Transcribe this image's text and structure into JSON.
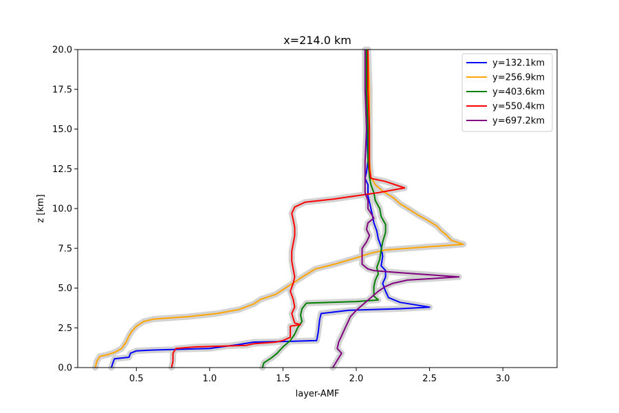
{
  "chart_data": {
    "type": "line",
    "title": "x=214.0 km",
    "xlabel": "layer-AMF",
    "ylabel": "z [km]",
    "xlim": [
      0.1,
      3.37
    ],
    "ylim": [
      0,
      20
    ],
    "xticks": [
      0.5,
      1.0,
      1.5,
      2.0,
      2.5,
      3.0
    ],
    "yticks": [
      0.0,
      2.5,
      5.0,
      7.5,
      10.0,
      12.5,
      15.0,
      17.5,
      20.0
    ],
    "legend_position": "top-right",
    "grid": false,
    "uncertainty_band_color": "#d3d3d3",
    "series": [
      {
        "name": "y=132.1km",
        "color": "#0000ff",
        "points": [
          [
            0.33,
            0
          ],
          [
            0.34,
            0.3
          ],
          [
            0.35,
            0.55
          ],
          [
            0.45,
            0.65
          ],
          [
            0.46,
            0.9
          ],
          [
            0.5,
            1.05
          ],
          [
            0.6,
            1.1
          ],
          [
            1.0,
            1.2
          ],
          [
            1.2,
            1.45
          ],
          [
            1.3,
            1.6
          ],
          [
            1.55,
            1.65
          ],
          [
            1.73,
            1.7
          ],
          [
            1.74,
            2.2
          ],
          [
            1.75,
            3.0
          ],
          [
            1.76,
            3.4
          ],
          [
            1.95,
            3.6
          ],
          [
            2.3,
            3.7
          ],
          [
            2.5,
            3.8
          ],
          [
            2.3,
            4.1
          ],
          [
            2.22,
            4.4
          ],
          [
            2.2,
            4.8
          ],
          [
            2.18,
            5.3
          ],
          [
            2.2,
            5.7
          ],
          [
            2.2,
            6.1
          ],
          [
            2.17,
            6.4
          ],
          [
            2.18,
            7.0
          ],
          [
            2.17,
            7.6
          ],
          [
            2.15,
            8.1
          ],
          [
            2.14,
            8.6
          ],
          [
            2.12,
            9.1
          ],
          [
            2.11,
            9.6
          ],
          [
            2.1,
            10.0
          ],
          [
            2.09,
            10.4
          ],
          [
            2.08,
            10.8
          ],
          [
            2.08,
            11.5
          ],
          [
            2.06,
            11.9
          ],
          [
            2.07,
            12.3
          ],
          [
            2.08,
            13.0
          ],
          [
            2.07,
            15.0
          ],
          [
            2.07,
            17.5
          ],
          [
            2.07,
            20.0
          ]
        ]
      },
      {
        "name": "y=256.9km",
        "color": "#ffa500",
        "points": [
          [
            0.22,
            0
          ],
          [
            0.23,
            0.4
          ],
          [
            0.25,
            0.7
          ],
          [
            0.3,
            0.8
          ],
          [
            0.35,
            0.95
          ],
          [
            0.4,
            1.2
          ],
          [
            0.43,
            1.6
          ],
          [
            0.45,
            2.0
          ],
          [
            0.47,
            2.3
          ],
          [
            0.5,
            2.6
          ],
          [
            0.55,
            2.9
          ],
          [
            0.62,
            3.05
          ],
          [
            0.85,
            3.2
          ],
          [
            1.05,
            3.4
          ],
          [
            1.2,
            3.65
          ],
          [
            1.3,
            4.0
          ],
          [
            1.35,
            4.3
          ],
          [
            1.45,
            4.6
          ],
          [
            1.5,
            4.9
          ],
          [
            1.55,
            5.2
          ],
          [
            1.6,
            5.5
          ],
          [
            1.65,
            5.8
          ],
          [
            1.72,
            6.2
          ],
          [
            1.85,
            6.5
          ],
          [
            2.0,
            6.9
          ],
          [
            2.1,
            7.2
          ],
          [
            2.2,
            7.4
          ],
          [
            2.5,
            7.6
          ],
          [
            2.73,
            7.75
          ],
          [
            2.65,
            8.0
          ],
          [
            2.62,
            8.3
          ],
          [
            2.58,
            8.6
          ],
          [
            2.55,
            8.9
          ],
          [
            2.48,
            9.3
          ],
          [
            2.42,
            9.6
          ],
          [
            2.37,
            9.9
          ],
          [
            2.3,
            10.3
          ],
          [
            2.25,
            10.7
          ],
          [
            2.18,
            11.1
          ],
          [
            2.13,
            11.5
          ],
          [
            2.1,
            12.0
          ],
          [
            2.09,
            13.0
          ],
          [
            2.09,
            15.0
          ],
          [
            2.09,
            17.5
          ],
          [
            2.08,
            20.0
          ]
        ]
      },
      {
        "name": "y=403.6km",
        "color": "#008000",
        "points": [
          [
            1.36,
            0
          ],
          [
            1.37,
            0.3
          ],
          [
            1.42,
            0.6
          ],
          [
            1.46,
            0.9
          ],
          [
            1.5,
            1.3
          ],
          [
            1.55,
            1.7
          ],
          [
            1.58,
            2.1
          ],
          [
            1.6,
            2.5
          ],
          [
            1.63,
            2.9
          ],
          [
            1.62,
            3.3
          ],
          [
            1.63,
            3.7
          ],
          [
            1.66,
            4.05
          ],
          [
            2.0,
            4.15
          ],
          [
            2.15,
            4.25
          ],
          [
            2.12,
            4.5
          ],
          [
            2.12,
            4.8
          ],
          [
            2.12,
            5.1
          ],
          [
            2.13,
            5.5
          ],
          [
            2.15,
            5.9
          ],
          [
            2.14,
            6.3
          ],
          [
            2.16,
            6.8
          ],
          [
            2.17,
            7.4
          ],
          [
            2.18,
            7.9
          ],
          [
            2.2,
            8.5
          ],
          [
            2.2,
            9.0
          ],
          [
            2.17,
            9.5
          ],
          [
            2.16,
            10.0
          ],
          [
            2.13,
            10.5
          ],
          [
            2.12,
            11.0
          ],
          [
            2.1,
            11.5
          ],
          [
            2.09,
            12.0
          ],
          [
            2.08,
            13.0
          ],
          [
            2.08,
            15.0
          ],
          [
            2.07,
            17.5
          ],
          [
            2.07,
            20.0
          ]
        ]
      },
      {
        "name": "y=550.4km",
        "color": "#ff0000",
        "points": [
          [
            0.74,
            0
          ],
          [
            0.75,
            0.4
          ],
          [
            0.75,
            0.9
          ],
          [
            0.77,
            1.2
          ],
          [
            0.9,
            1.3
          ],
          [
            1.1,
            1.35
          ],
          [
            1.25,
            1.4
          ],
          [
            1.3,
            1.5
          ],
          [
            1.45,
            1.6
          ],
          [
            1.5,
            1.7
          ],
          [
            1.55,
            1.9
          ],
          [
            1.55,
            2.2
          ],
          [
            1.55,
            2.6
          ],
          [
            1.62,
            2.7
          ],
          [
            1.58,
            2.8
          ],
          [
            1.57,
            3.1
          ],
          [
            1.56,
            3.4
          ],
          [
            1.58,
            3.8
          ],
          [
            1.57,
            4.3
          ],
          [
            1.55,
            4.8
          ],
          [
            1.57,
            5.3
          ],
          [
            1.58,
            5.7
          ],
          [
            1.57,
            6.2
          ],
          [
            1.56,
            6.7
          ],
          [
            1.56,
            7.3
          ],
          [
            1.57,
            7.8
          ],
          [
            1.58,
            8.3
          ],
          [
            1.58,
            8.8
          ],
          [
            1.57,
            9.3
          ],
          [
            1.56,
            9.7
          ],
          [
            1.58,
            10.1
          ],
          [
            1.65,
            10.4
          ],
          [
            1.85,
            10.6
          ],
          [
            2.0,
            10.8
          ],
          [
            2.15,
            11.0
          ],
          [
            2.33,
            11.3
          ],
          [
            2.2,
            11.7
          ],
          [
            2.1,
            11.9
          ],
          [
            2.09,
            12.5
          ],
          [
            2.09,
            13.0
          ],
          [
            2.09,
            15.0
          ],
          [
            2.08,
            17.5
          ],
          [
            2.08,
            20.0
          ]
        ]
      },
      {
        "name": "y=697.2km",
        "color": "#800080",
        "points": [
          [
            1.84,
            0
          ],
          [
            1.86,
            0.3
          ],
          [
            1.88,
            0.6
          ],
          [
            1.9,
            0.9
          ],
          [
            1.87,
            1.2
          ],
          [
            1.88,
            1.6
          ],
          [
            1.9,
            2.0
          ],
          [
            1.92,
            2.4
          ],
          [
            1.94,
            2.8
          ],
          [
            1.96,
            3.2
          ],
          [
            2.0,
            3.6
          ],
          [
            2.05,
            4.0
          ],
          [
            2.1,
            4.4
          ],
          [
            2.15,
            4.8
          ],
          [
            2.2,
            5.1
          ],
          [
            2.25,
            5.3
          ],
          [
            2.35,
            5.5
          ],
          [
            2.7,
            5.7
          ],
          [
            2.4,
            5.9
          ],
          [
            2.25,
            6.0
          ],
          [
            2.12,
            6.1
          ],
          [
            2.08,
            6.2
          ],
          [
            2.04,
            6.5
          ],
          [
            2.04,
            7.0
          ],
          [
            2.04,
            7.5
          ],
          [
            2.07,
            7.9
          ],
          [
            2.09,
            8.3
          ],
          [
            2.07,
            8.7
          ],
          [
            2.08,
            9.1
          ],
          [
            2.12,
            9.4
          ],
          [
            2.1,
            9.7
          ],
          [
            2.08,
            10.0
          ],
          [
            2.08,
            10.5
          ],
          [
            2.06,
            11.0
          ],
          [
            2.06,
            11.5
          ],
          [
            2.06,
            12.0
          ],
          [
            2.06,
            13.0
          ],
          [
            2.07,
            15.0
          ],
          [
            2.06,
            17.5
          ],
          [
            2.06,
            20.0
          ]
        ]
      }
    ]
  }
}
